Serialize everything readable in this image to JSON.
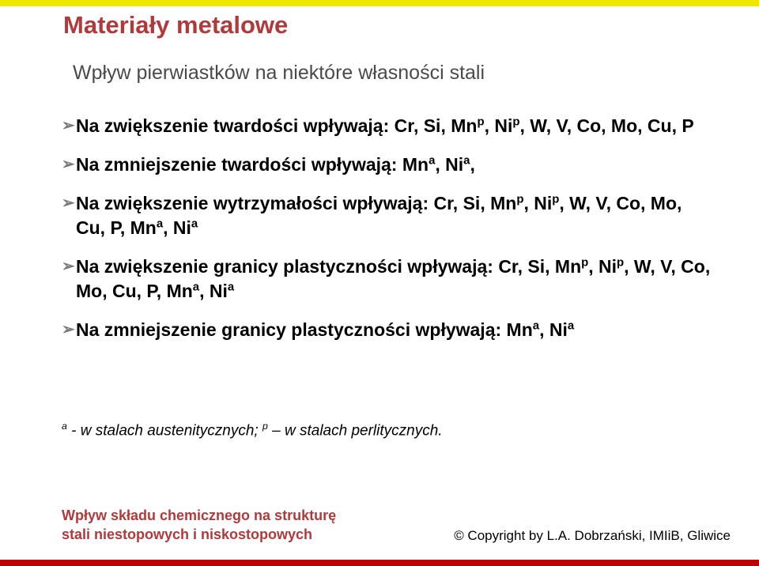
{
  "colors": {
    "title": "#b03a3b",
    "subtitle": "#4a4a4a",
    "body": "#000000",
    "arrow": "#7a7a7a",
    "footer_heading": "#b03a3b",
    "footer_copy": "#000000",
    "band_top": "#efe700",
    "band_bottom": "#c00000"
  },
  "title": "Materiały metalowe",
  "subtitle": "Wpływ pierwiastków na niektóre własności stali",
  "bullets": [
    {
      "pre": "Na zwiększenie twardości wpływają: Cr, Si, Mn",
      "sup1": "p",
      "mid1": ", Ni",
      "sup2": "p",
      "post": ", W, V, Co, Mo, Cu, P"
    },
    {
      "pre": "Na zmniejszenie twardości wpływają: Mn",
      "sup1": "a",
      "mid1": ", Ni",
      "sup2": "a",
      "post": ","
    },
    {
      "pre": "Na zwiększenie wytrzymałości wpływają: Cr, Si, Mn",
      "sup1": "p",
      "mid1": ", Ni",
      "sup2": "p",
      "mid2": ", W, V, Co, Mo, Cu, P, Mn",
      "sup3": "a",
      "mid3": ", Ni",
      "sup4": "a",
      "post": ""
    },
    {
      "pre": "Na zwiększenie granicy plastyczności wpływają: Cr, Si, Mn",
      "sup1": "p",
      "mid1": ", Ni",
      "sup2": "p",
      "mid2": ", W, V, Co, Mo, Cu, P, Mn",
      "sup3": "a",
      "mid3": ", Ni",
      "sup4": "a",
      "post": ""
    },
    {
      "pre": "Na zmniejszenie granicy plastyczności wpływają: Mn",
      "sup1": "a",
      "mid1": ", Ni",
      "sup2": "a",
      "post": ""
    }
  ],
  "footnote": {
    "sup1": "a",
    "text1": " - w stalach austenitycznych; ",
    "sup2": "p",
    "text2": " – w stalach perlitycznych."
  },
  "footer": {
    "line1": "Wpływ składu chemicznego na strukturę",
    "line2": "stali niestopowych i niskostopowych",
    "copyright": "© Copyright by L.A. Dobrzański, IMIiB, Gliwice"
  }
}
